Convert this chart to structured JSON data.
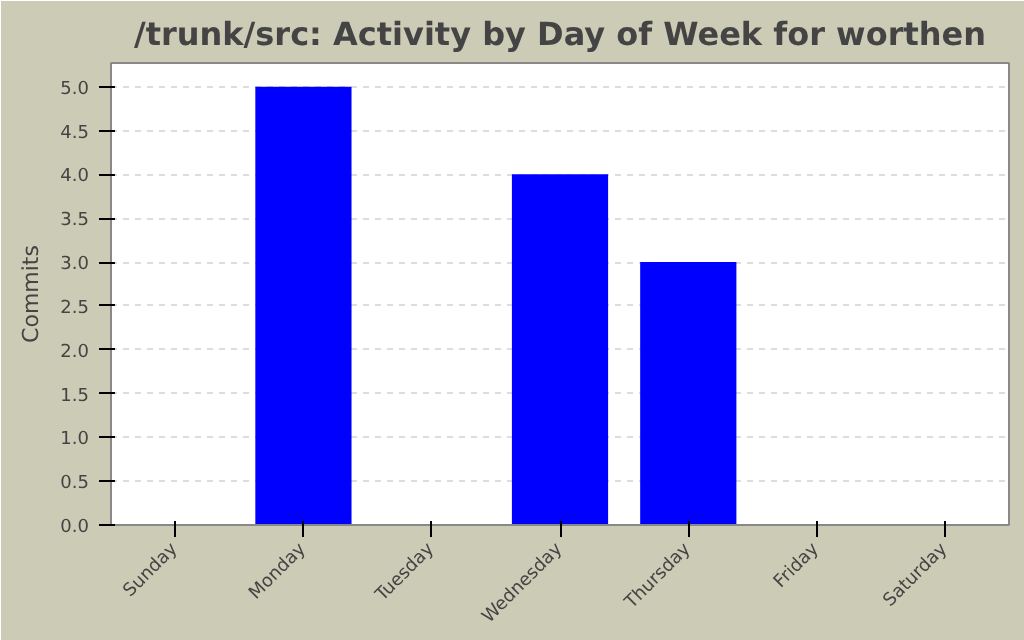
{
  "chart_data": {
    "type": "bar",
    "title": "/trunk/src: Activity by Day of Week for worthen",
    "ylabel": "Commits",
    "categories": [
      "Sunday",
      "Monday",
      "Tuesday",
      "Wednesday",
      "Thursday",
      "Friday",
      "Saturday"
    ],
    "values": [
      0,
      5,
      0,
      4,
      3,
      0,
      0
    ],
    "color": "#0000ff",
    "ylim": [
      0,
      5.27
    ],
    "yticks": [
      {
        "value": 0,
        "label": "0.0"
      },
      {
        "value": 0.5,
        "label": "0.5"
      },
      {
        "value": 1,
        "label": "1.0"
      },
      {
        "value": 1.5,
        "label": "1.5"
      },
      {
        "value": 2,
        "label": "2.0"
      },
      {
        "value": 2.5,
        "label": "2.5"
      },
      {
        "value": 3,
        "label": "3.0"
      },
      {
        "value": 3.5,
        "label": "3.5"
      },
      {
        "value": 4,
        "label": "4.0"
      },
      {
        "value": 4.5,
        "label": "4.5"
      },
      {
        "value": 5,
        "label": "5.0"
      }
    ],
    "grid": "y"
  }
}
